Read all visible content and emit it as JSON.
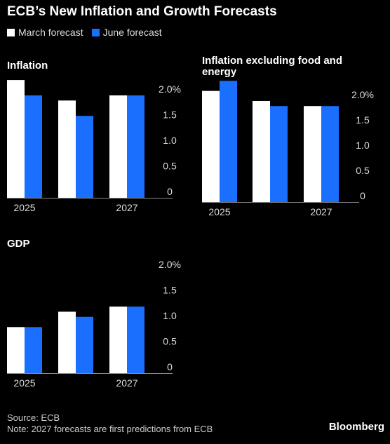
{
  "title": "ECB’s New Inflation and Growth Forecasts",
  "legend": [
    {
      "label": "March forecast",
      "color": "#ffffff"
    },
    {
      "label": "June forecast",
      "color": "#1a6fff"
    }
  ],
  "chart_data": [
    {
      "type": "bar",
      "title": "Inflation",
      "categories": [
        "2025",
        "2026",
        "2027"
      ],
      "x_tick_labels": [
        "2025",
        "",
        "2027"
      ],
      "series": [
        {
          "name": "March forecast",
          "values": [
            2.3,
            1.9,
            2.0
          ]
        },
        {
          "name": "June forecast",
          "values": [
            2.0,
            1.6,
            2.0
          ]
        }
      ],
      "y_ticks": [
        "2.0%",
        "1.5",
        "1.0",
        "0.5",
        "0"
      ],
      "ylim": [
        0,
        2.3
      ]
    },
    {
      "type": "bar",
      "title": "Inflation excluding food and energy",
      "categories": [
        "2025",
        "2026",
        "2027"
      ],
      "x_tick_labels": [
        "2025",
        "",
        "2027"
      ],
      "series": [
        {
          "name": "March forecast",
          "values": [
            2.2,
            2.0,
            1.9
          ]
        },
        {
          "name": "June forecast",
          "values": [
            2.4,
            1.9,
            1.9
          ]
        }
      ],
      "y_ticks": [
        "2.0%",
        "1.5",
        "1.0",
        "0.5",
        "0"
      ],
      "ylim": [
        0,
        2.4
      ]
    },
    {
      "type": "bar",
      "title": "GDP",
      "categories": [
        "2025",
        "2026",
        "2027"
      ],
      "x_tick_labels": [
        "2025",
        "",
        "2027"
      ],
      "series": [
        {
          "name": "March forecast",
          "values": [
            0.9,
            1.2,
            1.3
          ]
        },
        {
          "name": "June forecast",
          "values": [
            0.9,
            1.1,
            1.3
          ]
        }
      ],
      "y_ticks": [
        "2.0%",
        "1.5",
        "1.0",
        "0.5",
        "0"
      ],
      "ylim": [
        0,
        2.0
      ]
    }
  ],
  "footer": {
    "source": "Source: ECB",
    "note": "Note: 2027 forecasts are first predictions from ECB"
  },
  "brand": "Bloomberg"
}
